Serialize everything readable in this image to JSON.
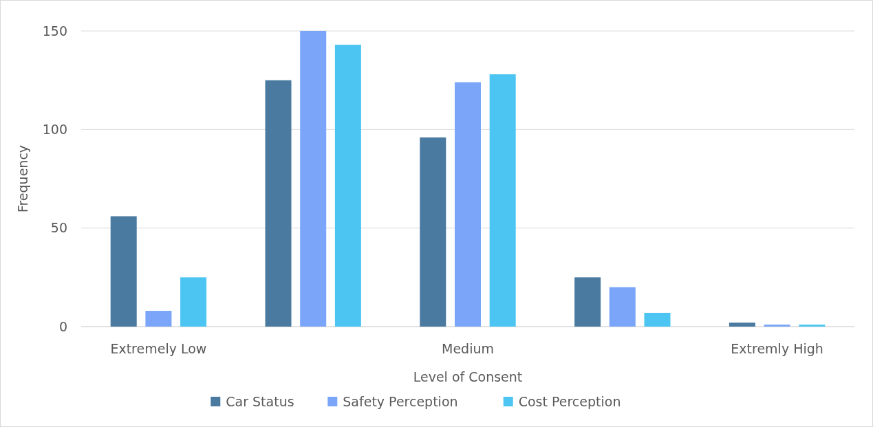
{
  "chart_data": {
    "type": "bar",
    "xlabel": "Level of Consent",
    "ylabel": "Frequency",
    "categories": [
      "Extremely Low",
      null,
      "Medium",
      null,
      "Extremly High"
    ],
    "series": [
      {
        "name": "Car Status",
        "color": "#4a7aa0",
        "values": [
          56,
          125,
          96,
          25,
          2
        ]
      },
      {
        "name": "Safety Perception",
        "color": "#7aa5f8",
        "values": [
          8,
          150,
          124,
          20,
          1
        ]
      },
      {
        "name": "Cost Perception",
        "color": "#4cc5f2",
        "values": [
          25,
          143,
          128,
          7,
          1
        ]
      }
    ],
    "ylim": [
      0,
      150
    ],
    "yticks": [
      0,
      50,
      100,
      150
    ],
    "grid": "y",
    "legend": "bottom"
  }
}
